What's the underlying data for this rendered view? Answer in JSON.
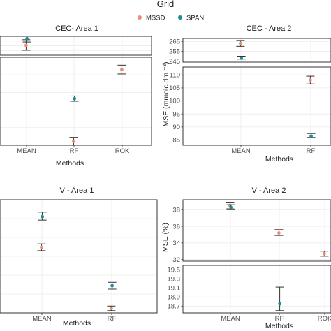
{
  "legend": {
    "title": "Grid",
    "items": [
      {
        "name": "MSSD",
        "color": "#F08A72"
      },
      {
        "name": "SPAN",
        "color": "#1C8C9A"
      }
    ]
  },
  "chart_data": [
    {
      "id": "cec1",
      "type": "scatter",
      "title": "CEC- Area 1",
      "xlabel": "Methods",
      "ylabel": "",
      "categories": [
        "MEAN",
        "RF",
        "ROK"
      ],
      "broken_axis": true,
      "ytick_labels_visible": false,
      "series": [
        {
          "name": "MSSD",
          "color": "#F08A72",
          "points": [
            {
              "x": "MEAN",
              "panel": 0,
              "y": 0.52,
              "lo": 0.26,
              "hi": 0.82
            },
            {
              "x": "RF",
              "panel": 1,
              "y": 0.045,
              "lo": 0.0,
              "hi": 0.09
            },
            {
              "x": "ROK",
              "panel": 1,
              "y": 0.86,
              "lo": 0.81,
              "hi": 0.91
            }
          ]
        },
        {
          "name": "SPAN",
          "color": "#1C8C9A",
          "points": [
            {
              "x": "MEAN",
              "panel": 0,
              "y": 0.88,
              "lo": 0.7,
              "hi": 1.0
            },
            {
              "x": "RF",
              "panel": 1,
              "y": 0.53,
              "lo": 0.5,
              "hi": 0.56
            }
          ]
        }
      ]
    },
    {
      "id": "cec2",
      "type": "scatter",
      "title": "CEC - Area 2",
      "xlabel": "Methods",
      "ylabel": "MSE (mmolc dm ⁻³)",
      "categories": [
        "MEAN",
        "RF"
      ],
      "broken_axis": true,
      "panels": [
        {
          "ylim": [
            244,
            268
          ],
          "ticks": [
            245,
            255,
            265
          ]
        },
        {
          "ylim": [
            83,
            113
          ],
          "ticks": [
            85,
            90,
            95,
            100,
            105,
            110
          ]
        }
      ],
      "series": [
        {
          "name": "MSSD",
          "color": "#F08A72",
          "points": [
            {
              "x": "MEAN",
              "panel": 0,
              "y": 263,
              "lo": 260,
              "hi": 266
            },
            {
              "x": "RF",
              "panel": 1,
              "y": 108,
              "lo": 106.5,
              "hi": 109.5
            }
          ]
        },
        {
          "name": "SPAN",
          "color": "#1C8C9A",
          "points": [
            {
              "x": "MEAN",
              "panel": 0,
              "y": 248,
              "lo": 247,
              "hi": 250
            },
            {
              "x": "RF",
              "panel": 1,
              "y": 86.5,
              "lo": 86,
              "hi": 87.5
            }
          ]
        }
      ]
    },
    {
      "id": "v1",
      "type": "scatter",
      "title": "V - Area 1",
      "xlabel": "Methods",
      "ylabel": "",
      "categories": [
        "MEAN",
        "RF"
      ],
      "broken_axis": false,
      "ytick_labels_visible": false,
      "series": [
        {
          "name": "MSSD",
          "color": "#F08A72",
          "points": [
            {
              "x": "MEAN",
              "panel": 0,
              "y": 0.58,
              "lo": 0.55,
              "hi": 0.61
            },
            {
              "x": "RF",
              "panel": 0,
              "y": 0.04,
              "lo": 0.02,
              "hi": 0.06
            }
          ]
        },
        {
          "name": "SPAN",
          "color": "#1C8C9A",
          "points": [
            {
              "x": "MEAN",
              "panel": 0,
              "y": 0.85,
              "lo": 0.82,
              "hi": 0.89
            },
            {
              "x": "RF",
              "panel": 0,
              "y": 0.24,
              "lo": 0.21,
              "hi": 0.27
            }
          ]
        }
      ]
    },
    {
      "id": "v2",
      "type": "scatter",
      "title": "V - Area 2",
      "xlabel": "Methods",
      "ylabel": "MSE (%)",
      "categories": [
        "MEAN",
        "RF",
        "ROK"
      ],
      "broken_axis": true,
      "panels": [
        {
          "ylim": [
            31.8,
            39.2
          ],
          "ticks": [
            32,
            34,
            36,
            38
          ]
        },
        {
          "ylim": [
            18.55,
            19.6
          ],
          "ticks": [
            18.7,
            18.9,
            19.1,
            19.3,
            19.5
          ]
        }
      ],
      "series": [
        {
          "name": "MSSD",
          "color": "#F08A72",
          "points": [
            {
              "x": "MEAN",
              "panel": 0,
              "y": 38.5,
              "lo": 38.1,
              "hi": 38.9
            },
            {
              "x": "RF",
              "panel": 0,
              "y": 35.2,
              "lo": 34.9,
              "hi": 35.6
            },
            {
              "x": "ROK",
              "panel": 0,
              "y": 32.7,
              "lo": 32.4,
              "hi": 33.0
            }
          ]
        },
        {
          "name": "SPAN",
          "color": "#1C8C9A",
          "points": [
            {
              "x": "MEAN",
              "panel": 0,
              "y": 38.3,
              "lo": 38.0,
              "hi": 38.6
            },
            {
              "x": "RF",
              "panel": 1,
              "y": 18.75,
              "lo": 18.6,
              "hi": 19.12
            }
          ]
        }
      ]
    }
  ]
}
